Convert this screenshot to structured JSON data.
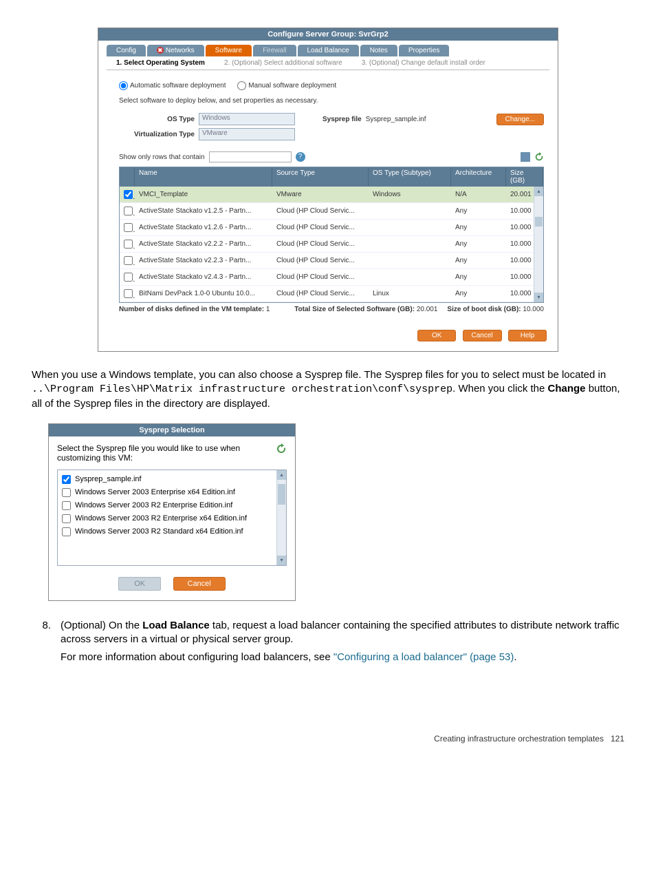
{
  "dialog1": {
    "title": "Configure Server Group: SvrGrp2",
    "tabs": [
      {
        "label": "Config",
        "disabled": false,
        "selected": false,
        "hasX": false
      },
      {
        "label": "Networks",
        "disabled": false,
        "selected": false,
        "hasX": true
      },
      {
        "label": "Software",
        "disabled": false,
        "selected": true,
        "hasX": false
      },
      {
        "label": "Firewall",
        "disabled": true,
        "selected": false,
        "hasX": false
      },
      {
        "label": "Load Balance",
        "disabled": false,
        "selected": false,
        "hasX": false
      },
      {
        "label": "Notes",
        "disabled": false,
        "selected": false,
        "hasX": false
      },
      {
        "label": "Properties",
        "disabled": false,
        "selected": false,
        "hasX": false
      }
    ],
    "subtabs": [
      {
        "label": "1. Select Operating System",
        "bold": true
      },
      {
        "label": "2. (Optional) Select additional software",
        "bold": false
      },
      {
        "label": "3. (Optional) Change default install order",
        "bold": false
      }
    ],
    "radioAuto": "Automatic software deployment",
    "radioManual": "Manual software deployment",
    "instruction": "Select software to deploy below, and set properties as necessary.",
    "osTypeLabel": "OS Type",
    "osTypeValue": "Windows",
    "sysprepLabel": "Sysprep file",
    "sysprepValue": "Sysprep_sample.inf",
    "changeBtn": "Change...",
    "virtLabel": "Virtualization Type",
    "virtValue": "VMware",
    "filterLabel": "Show only rows that contain",
    "columns": {
      "name": "Name",
      "src": "Source Type",
      "ost": "OS Type (Subtype)",
      "arch": "Architecture",
      "size": "Size (GB)"
    },
    "rows": [
      {
        "chk": true,
        "sel": true,
        "name": "VMCI_Template",
        "src": "VMware",
        "ost": "Windows",
        "arch": "N/A",
        "size": "20.001"
      },
      {
        "chk": false,
        "sel": false,
        "name": "ActiveState Stackato v1.2.5 - Partn...",
        "src": "Cloud (HP Cloud Servic...",
        "ost": "",
        "arch": "Any",
        "size": "10.000"
      },
      {
        "chk": false,
        "sel": false,
        "name": "ActiveState Stackato v1.2.6 - Partn...",
        "src": "Cloud (HP Cloud Servic...",
        "ost": "",
        "arch": "Any",
        "size": "10.000"
      },
      {
        "chk": false,
        "sel": false,
        "name": "ActiveState Stackato v2.2.2 - Partn...",
        "src": "Cloud (HP Cloud Servic...",
        "ost": "",
        "arch": "Any",
        "size": "10.000"
      },
      {
        "chk": false,
        "sel": false,
        "name": "ActiveState Stackato v2.2.3 - Partn...",
        "src": "Cloud (HP Cloud Servic...",
        "ost": "",
        "arch": "Any",
        "size": "10.000"
      },
      {
        "chk": false,
        "sel": false,
        "name": "ActiveState Stackato v2.4.3 - Partn...",
        "src": "Cloud (HP Cloud Servic...",
        "ost": "",
        "arch": "Any",
        "size": "10.000"
      },
      {
        "chk": false,
        "sel": false,
        "name": "BitNami DevPack 1.0-0 Ubuntu 10.0...",
        "src": "Cloud (HP Cloud Servic...",
        "ost": "Linux",
        "arch": "Any",
        "size": "10.000"
      }
    ],
    "footer": {
      "disksLabel": "Number of disks defined in the VM template:",
      "disksVal": "1",
      "totalLabel": "Total Size of Selected Software (GB):",
      "totalVal": "20.001",
      "bootLabel": "Size of boot disk (GB):",
      "bootVal": "10.000"
    },
    "buttons": {
      "ok": "OK",
      "cancel": "Cancel",
      "help": "Help"
    }
  },
  "para1_a": "When you use a Windows template, you can also choose a Sysprep file. The Sysprep files for you to select must be located in ",
  "para1_code": "..\\Program Files\\HP\\Matrix infrastructure orchestration\\conf\\sysprep",
  "para1_b": ". When you click the ",
  "para1_bold": "Change",
  "para1_c": " button, all of the Sysprep files in the directory are displayed.",
  "dialog2": {
    "title": "Sysprep Selection",
    "prompt": "Select the Sysprep file you would like to use when customizing this VM:",
    "items": [
      {
        "chk": true,
        "label": "Sysprep_sample.inf"
      },
      {
        "chk": false,
        "label": "Windows Server 2003 Enterprise x64 Edition.inf"
      },
      {
        "chk": false,
        "label": "Windows Server 2003 R2 Enterprise Edition.inf"
      },
      {
        "chk": false,
        "label": "Windows Server 2003 R2 Enterprise x64 Edition.inf"
      },
      {
        "chk": false,
        "label": "Windows Server 2003 R2 Standard x64 Edition.inf"
      }
    ],
    "ok": "OK",
    "cancel": "Cancel"
  },
  "step8": {
    "num": "8.",
    "lead": "(Optional) On the ",
    "bold": "Load Balance",
    "rest": " tab, request a load balancer containing the specified attributes to distribute network traffic across servers in a virtual or physical server group.",
    "line2a": "For more information about configuring load balancers, see ",
    "link": "\"Configuring a load balancer\" (page 53)",
    "line2b": "."
  },
  "pageFooter": {
    "text": "Creating infrastructure orchestration templates",
    "page": "121"
  }
}
